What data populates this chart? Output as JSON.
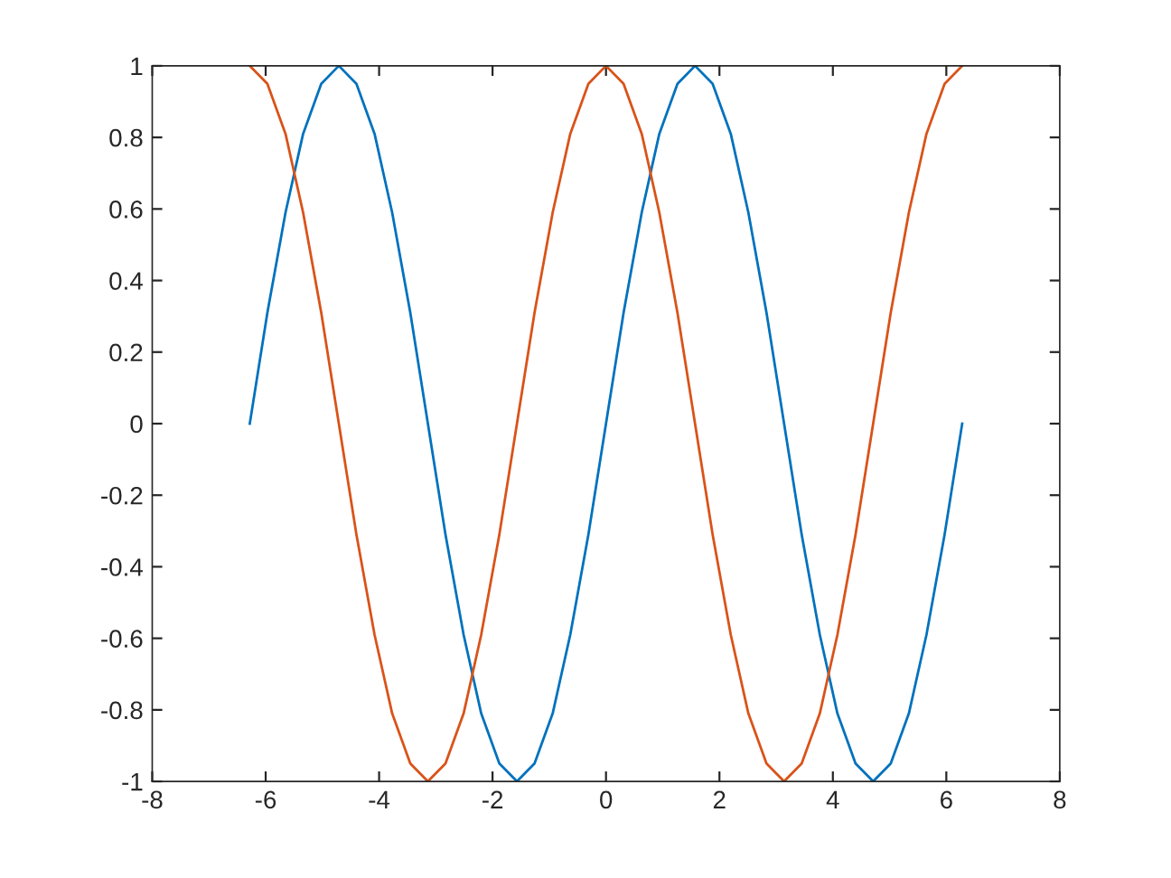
{
  "chart_data": {
    "type": "line",
    "x": [
      -6.28,
      -5.97,
      -5.65,
      -5.34,
      -5.02,
      -4.71,
      -4.4,
      -4.08,
      -3.77,
      -3.45,
      -3.14,
      -2.83,
      -2.51,
      -2.2,
      -1.88,
      -1.57,
      -1.26,
      -0.94,
      -0.63,
      -0.31,
      0,
      0.31,
      0.63,
      0.94,
      1.26,
      1.57,
      1.88,
      2.2,
      2.51,
      2.83,
      3.14,
      3.45,
      3.77,
      4.08,
      4.4,
      4.71,
      5.02,
      5.34,
      5.65,
      5.97,
      6.28
    ],
    "series": [
      {
        "color": "#0072bd",
        "values": [
          0,
          0.31,
          0.59,
          0.81,
          0.95,
          1,
          0.95,
          0.81,
          0.59,
          0.31,
          0,
          -0.31,
          -0.59,
          -0.81,
          -0.95,
          -1,
          -0.95,
          -0.81,
          -0.59,
          -0.31,
          0,
          0.31,
          0.59,
          0.81,
          0.95,
          1,
          0.95,
          0.81,
          0.59,
          0.31,
          0,
          -0.31,
          -0.59,
          -0.81,
          -0.95,
          -1,
          -0.95,
          -0.81,
          -0.59,
          -0.31,
          0
        ]
      },
      {
        "color": "#d95319",
        "values": [
          1,
          0.95,
          0.81,
          0.59,
          0.31,
          0,
          -0.31,
          -0.59,
          -0.81,
          -0.95,
          -1,
          -0.95,
          -0.81,
          -0.59,
          -0.31,
          0,
          0.31,
          0.59,
          0.81,
          0.95,
          1,
          0.95,
          0.81,
          0.59,
          0.31,
          0,
          -0.31,
          -0.59,
          -0.81,
          -0.95,
          -1,
          -0.95,
          -0.81,
          -0.59,
          -0.31,
          0,
          0.31,
          0.59,
          0.81,
          0.95,
          1
        ]
      }
    ],
    "xlim": [
      -8,
      8
    ],
    "xticks": [
      -8,
      -6,
      -4,
      -2,
      0,
      2,
      4,
      6,
      8
    ],
    "ylim": [
      -1,
      1
    ],
    "yticks": [
      -1,
      -0.8,
      -0.6,
      -0.4,
      -0.2,
      0,
      0.2,
      0.4,
      0.6,
      0.8,
      1
    ],
    "grid": false,
    "marker": "none",
    "line_style": "solid"
  }
}
